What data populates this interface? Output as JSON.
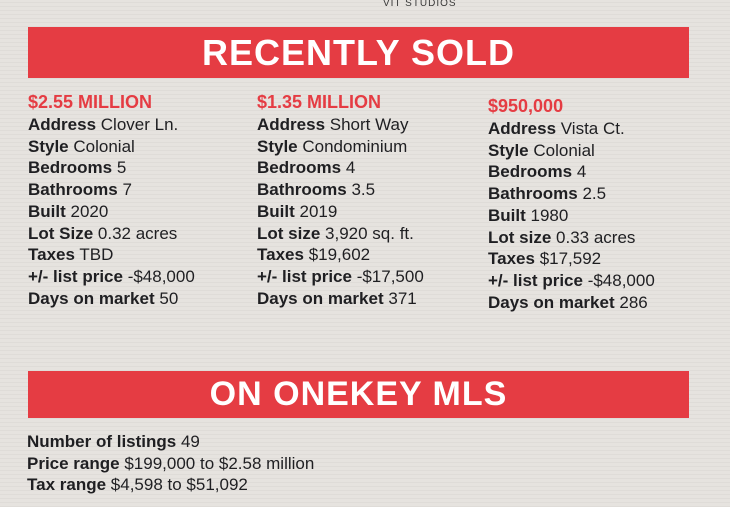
{
  "credit": "VIT STUDIOS",
  "sections": {
    "sold_title": "RECENTLY SOLD",
    "mls_title": "ON ONEKEY MLS"
  },
  "listings": [
    {
      "price": "$2.55 MILLION",
      "fields": [
        {
          "label": "Address",
          "value": "Clover Ln."
        },
        {
          "label": "Style",
          "value": "Colonial"
        },
        {
          "label": "Bedrooms",
          "value": "5"
        },
        {
          "label": "Bathrooms",
          "value": "7"
        },
        {
          "label": "Built",
          "value": "2020"
        },
        {
          "label": "Lot Size",
          "value": "0.32 acres"
        },
        {
          "label": "Taxes",
          "value": "TBD"
        },
        {
          "label": "+/- list price",
          "value": "-$48,000"
        },
        {
          "label": "Days on market",
          "value": "50"
        }
      ]
    },
    {
      "price": "$1.35 MILLION",
      "fields": [
        {
          "label": "Address",
          "value": "Short Way"
        },
        {
          "label": "Style",
          "value": "Condominium"
        },
        {
          "label": "Bedrooms",
          "value": "4"
        },
        {
          "label": "Bathrooms",
          "value": "3.5"
        },
        {
          "label": "Built",
          "value": "2019"
        },
        {
          "label": "Lot size",
          "value": "3,920 sq. ft."
        },
        {
          "label": "Taxes",
          "value": "$19,602"
        },
        {
          "label": "+/- list price",
          "value": "-$17,500"
        },
        {
          "label": "Days on market",
          "value": "371"
        }
      ]
    },
    {
      "price": "$950,000",
      "fields": [
        {
          "label": "Address",
          "value": "Vista Ct."
        },
        {
          "label": "Style",
          "value": "Colonial"
        },
        {
          "label": "Bedrooms",
          "value": "4"
        },
        {
          "label": "Bathrooms",
          "value": "2.5"
        },
        {
          "label": "Built",
          "value": "1980"
        },
        {
          "label": "Lot size",
          "value": "0.33 acres"
        },
        {
          "label": "Taxes",
          "value": "$17,592"
        },
        {
          "label": "+/- list price",
          "value": "-$48,000"
        },
        {
          "label": "Days on market",
          "value": "286"
        }
      ]
    }
  ],
  "mls": [
    {
      "label": "Number of listings",
      "value": "49"
    },
    {
      "label": "Price range",
      "value": "$199,000 to $2.58 million"
    },
    {
      "label": "Tax range",
      "value": "$4,598 to $51,092"
    }
  ],
  "colors": {
    "accent": "#e53c43",
    "paper": "#e6e3df",
    "ink": "#1f1f22"
  }
}
